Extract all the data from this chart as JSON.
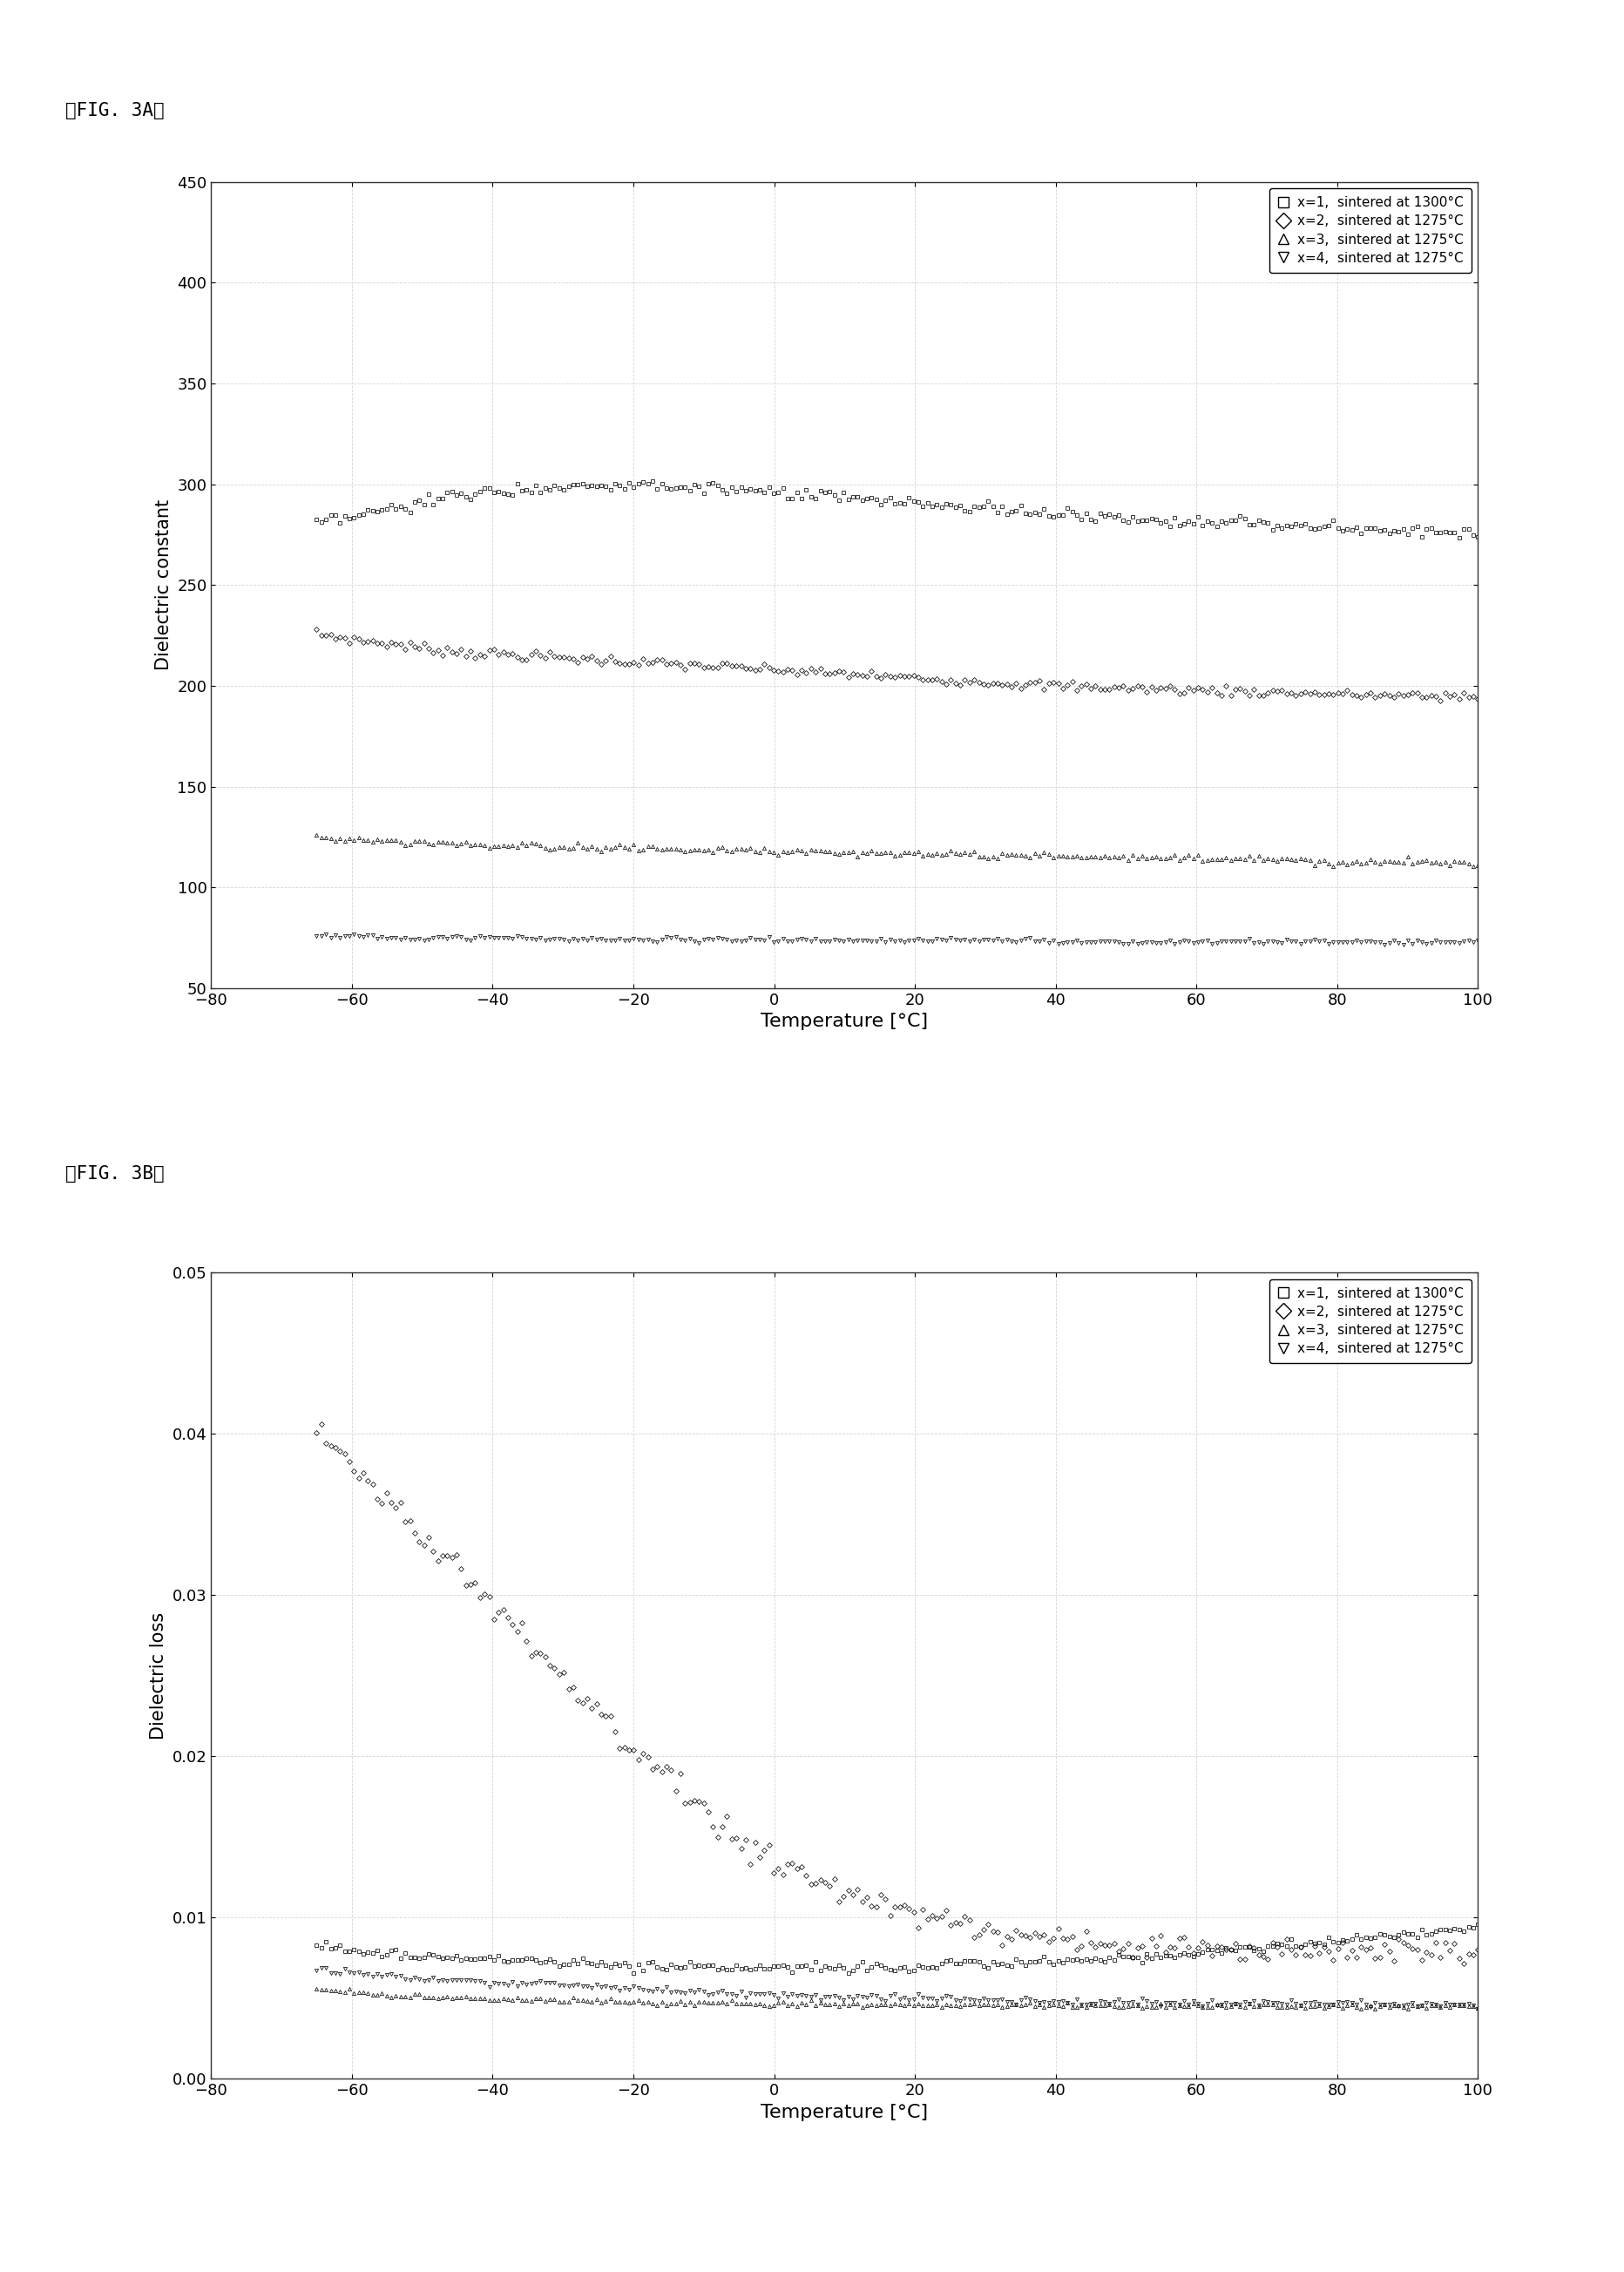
{
  "fig_label_a": "〜FIG. 3A〝",
  "fig_label_b": "〜FIG. 3B〝",
  "xlabel": "Temperature [°C]",
  "ylabel_a": "Dielectric constant",
  "ylabel_b": "Dielectric loss",
  "xlim": [
    -80,
    100
  ],
  "ylim_a": [
    50,
    450
  ],
  "ylim_b": [
    0.0,
    0.05
  ],
  "xticks": [
    -80,
    -60,
    -40,
    -20,
    0,
    20,
    40,
    60,
    80,
    100
  ],
  "yticks_a": [
    50,
    100,
    150,
    200,
    250,
    300,
    350,
    400,
    450
  ],
  "yticks_b": [
    0.0,
    0.01,
    0.02,
    0.03,
    0.04,
    0.05
  ],
  "legend_entries": [
    "x=1,  sintered at 1300°C",
    "x=2,  sintered at 1275°C",
    "x=3,  sintered at 1275°C",
    "x=4,  sintered at 1275°C"
  ],
  "markers": [
    "s",
    "D",
    "^",
    "v"
  ],
  "marker_size": 3,
  "colors": [
    "#000000",
    "#000000",
    "#000000",
    "#000000"
  ],
  "background_color": "#ffffff",
  "plot_bg_color": "#ffffff",
  "grid_color": "#cccccc",
  "series_a": {
    "x1": {
      "x_pts": [
        -65,
        -62,
        -58,
        -54,
        -50,
        -46,
        -42,
        -38,
        -34,
        -30,
        -26,
        -22,
        -18,
        -14,
        -10,
        -6,
        -2,
        2,
        6,
        10,
        14,
        18,
        22,
        26,
        30,
        34,
        38,
        42,
        46,
        50,
        54,
        58,
        62,
        66,
        70,
        74,
        78,
        82,
        86,
        90,
        94,
        98,
        100
      ],
      "y_pts": [
        280,
        282,
        285,
        288,
        291,
        294,
        296,
        297,
        298,
        299,
        300,
        300,
        300,
        299,
        298,
        297,
        296,
        295,
        294,
        293,
        292,
        291,
        290,
        289,
        288,
        287,
        286,
        285,
        284,
        283,
        283,
        282,
        281,
        281,
        280,
        279,
        279,
        278,
        278,
        277,
        277,
        276,
        276
      ]
    },
    "x2": {
      "x_pts": [
        -65,
        -60,
        -55,
        -50,
        -45,
        -40,
        -35,
        -30,
        -25,
        -20,
        -15,
        -10,
        -5,
        0,
        5,
        10,
        15,
        20,
        25,
        30,
        35,
        40,
        50,
        60,
        70,
        80,
        90,
        100
      ],
      "y_pts": [
        226,
        223,
        221,
        219,
        217,
        216,
        215,
        214,
        213,
        212,
        211,
        210,
        209,
        208,
        207,
        206,
        205,
        204,
        203,
        202,
        201,
        200,
        199,
        198,
        197,
        196,
        195,
        195
      ]
    },
    "x3": {
      "x_pts": [
        -65,
        -60,
        -55,
        -50,
        -45,
        -40,
        -35,
        -30,
        -25,
        -20,
        -15,
        -10,
        -5,
        0,
        10,
        20,
        30,
        40,
        50,
        60,
        70,
        80,
        90,
        100
      ],
      "y_pts": [
        125,
        124,
        123,
        122,
        122,
        121,
        121,
        120,
        120,
        120,
        119,
        119,
        119,
        118,
        118,
        117,
        116,
        116,
        115,
        115,
        114,
        113,
        113,
        112
      ]
    },
    "x4": {
      "x_pts": [
        -65,
        -60,
        -55,
        -50,
        -45,
        -40,
        -35,
        -30,
        -25,
        -20,
        -15,
        -10,
        -5,
        0,
        10,
        20,
        30,
        40,
        50,
        60,
        70,
        80,
        90,
        100
      ],
      "y_pts": [
        76,
        76,
        75,
        75,
        75,
        75,
        75,
        74,
        74,
        74,
        74,
        74,
        74,
        74,
        74,
        74,
        74,
        73,
        73,
        73,
        73,
        73,
        73,
        73
      ]
    }
  },
  "series_b": {
    "x1": {
      "x_pts": [
        -65,
        -60,
        -55,
        -50,
        -45,
        -40,
        -35,
        -30,
        -25,
        -20,
        -15,
        -10,
        -5,
        0,
        10,
        20,
        30,
        40,
        50,
        60,
        70,
        80,
        90,
        100
      ],
      "y_pts": [
        0.0082,
        0.008,
        0.0078,
        0.0076,
        0.0075,
        0.0074,
        0.0073,
        0.0072,
        0.0071,
        0.007,
        0.007,
        0.0069,
        0.0069,
        0.0069,
        0.0069,
        0.007,
        0.0071,
        0.0073,
        0.0075,
        0.0078,
        0.0082,
        0.0086,
        0.009,
        0.0095
      ]
    },
    "x2": {
      "x_pts": [
        -65,
        -62,
        -59,
        -56,
        -53,
        -50,
        -47,
        -44,
        -41,
        -38,
        -35,
        -32,
        -29,
        -26,
        -23,
        -20,
        -17,
        -14,
        -11,
        -8,
        -5,
        -2,
        2,
        6,
        10,
        14,
        18,
        22,
        26,
        30,
        34,
        38,
        42,
        46,
        50,
        54,
        58,
        62,
        66,
        70,
        74,
        78,
        82,
        86,
        90,
        94,
        98,
        100
      ],
      "y_pts": [
        0.04,
        0.0388,
        0.0375,
        0.0362,
        0.0349,
        0.0336,
        0.0323,
        0.031,
        0.0297,
        0.0284,
        0.0271,
        0.0258,
        0.0245,
        0.0232,
        0.0219,
        0.0206,
        0.0193,
        0.018,
        0.0168,
        0.0157,
        0.0147,
        0.0138,
        0.013,
        0.0123,
        0.0116,
        0.011,
        0.0105,
        0.01,
        0.0096,
        0.0093,
        0.009,
        0.0088,
        0.0086,
        0.0084,
        0.0083,
        0.0082,
        0.0081,
        0.008,
        0.0079,
        0.0079,
        0.0079,
        0.0079,
        0.0079,
        0.0079,
        0.0079,
        0.0079,
        0.0079,
        0.0079
      ]
    },
    "x3": {
      "x_pts": [
        -65,
        -60,
        -55,
        -50,
        -45,
        -40,
        -35,
        -30,
        -25,
        -20,
        -15,
        -10,
        -5,
        0,
        10,
        20,
        30,
        40,
        50,
        60,
        70,
        80,
        90,
        100
      ],
      "y_pts": [
        0.0056,
        0.0054,
        0.0052,
        0.0051,
        0.005,
        0.005,
        0.0049,
        0.0049,
        0.0048,
        0.0048,
        0.0047,
        0.0047,
        0.0047,
        0.0047,
        0.0046,
        0.0046,
        0.0046,
        0.0046,
        0.0045,
        0.0045,
        0.0045,
        0.0045,
        0.0045,
        0.0045
      ]
    },
    "x4": {
      "x_pts": [
        -65,
        -60,
        -55,
        -50,
        -45,
        -40,
        -35,
        -30,
        -25,
        -20,
        -15,
        -10,
        -5,
        0,
        10,
        20,
        30,
        40,
        50,
        60,
        70,
        80,
        90,
        100
      ],
      "y_pts": [
        0.0068,
        0.0066,
        0.0064,
        0.0062,
        0.0061,
        0.006,
        0.0059,
        0.0058,
        0.0057,
        0.0056,
        0.0055,
        0.0054,
        0.0053,
        0.0052,
        0.0051,
        0.005,
        0.0049,
        0.0048,
        0.0047,
        0.0047,
        0.0047,
        0.0047,
        0.0046,
        0.0046
      ]
    }
  }
}
